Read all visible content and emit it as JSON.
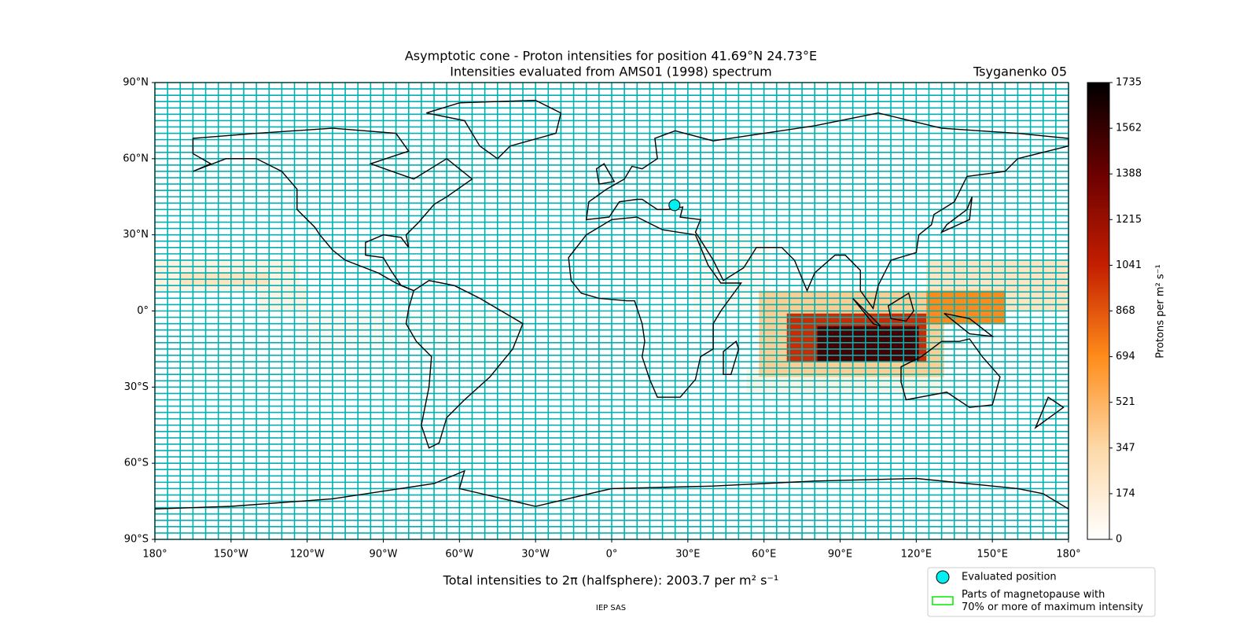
{
  "chart_data": {
    "type": "map",
    "title": "Asymptotic cone - Proton intensities for position 41.69°N 24.73°E",
    "subtitle": "Intensities evaluated from AMS01 (1998) spectrum",
    "model": "Tsyganenko 05",
    "xlabel": "Total intensities to 2π (halfsphere): 2003.7 per m² s⁻¹",
    "footer": "IEP SAS",
    "xlim": [
      -180,
      180
    ],
    "ylim": [
      -90,
      90
    ],
    "xticks": [
      {
        "value": -180,
        "label": "180°"
      },
      {
        "value": -150,
        "label": "150°W"
      },
      {
        "value": -120,
        "label": "120°W"
      },
      {
        "value": -90,
        "label": "90°W"
      },
      {
        "value": -60,
        "label": "60°W"
      },
      {
        "value": -30,
        "label": "30°W"
      },
      {
        "value": 0,
        "label": "0°"
      },
      {
        "value": 30,
        "label": "30°E"
      },
      {
        "value": 60,
        "label": "60°E"
      },
      {
        "value": 90,
        "label": "90°E"
      },
      {
        "value": 120,
        "label": "120°E"
      },
      {
        "value": 150,
        "label": "150°E"
      },
      {
        "value": 180,
        "label": "180°"
      }
    ],
    "yticks": [
      {
        "value": 90,
        "label": "90°N"
      },
      {
        "value": 60,
        "label": "60°N"
      },
      {
        "value": 30,
        "label": "30°N"
      },
      {
        "value": 0,
        "label": "0°"
      },
      {
        "value": -30,
        "label": "30°S"
      },
      {
        "value": -60,
        "label": "60°S"
      },
      {
        "value": -90,
        "label": "90°S"
      }
    ],
    "colorbar": {
      "label": "Protons per m² s⁻¹",
      "clim": [
        0,
        1735
      ],
      "ticks": [
        0,
        {
          "value": 173.5,
          "label": "174"
        },
        347,
        {
          "value": 520.5,
          "label": "521"
        },
        694,
        {
          "value": 867.5,
          "label": "868"
        },
        1041,
        {
          "value": 1214.5,
          "label": "1215"
        },
        1388,
        {
          "value": 1561.5,
          "label": "1562"
        },
        1735
      ],
      "colormap": [
        "#ffffff",
        "#fdd9a8",
        "#ff8c1a",
        "#c41e00",
        "#6b0000",
        "#000000"
      ]
    },
    "cells": [
      {
        "lon": [
          -180,
          -123
        ],
        "lat": [
          8,
          20
        ],
        "value": 120
      },
      {
        "lon": [
          -170,
          -135
        ],
        "lat": [
          10,
          15
        ],
        "value": 260
      },
      {
        "lon": [
          -139,
          -120
        ],
        "lat": [
          0,
          10
        ],
        "value": 110
      },
      {
        "lon": [
          -123,
          -86
        ],
        "lat": [
          -14,
          0
        ],
        "value": 60
      },
      {
        "lon": [
          -86,
          -33
        ],
        "lat": [
          -14,
          0
        ],
        "value": 30
      },
      {
        "lon": [
          32,
          62
        ],
        "lat": [
          0,
          30
        ],
        "value": 60
      },
      {
        "lon": [
          53,
          131
        ],
        "lat": [
          -32,
          -23
        ],
        "value": 100
      },
      {
        "lon": [
          58,
          131
        ],
        "lat": [
          -26,
          8
        ],
        "value": 400
      },
      {
        "lon": [
          69,
          124
        ],
        "lat": [
          -20,
          -1
        ],
        "value": 1000
      },
      {
        "lon": [
          81,
          121
        ],
        "lat": [
          -20,
          -6
        ],
        "value": 1500
      },
      {
        "lon": [
          124,
          180
        ],
        "lat": [
          0,
          20
        ],
        "value": 250
      },
      {
        "lon": [
          124,
          155
        ],
        "lat": [
          -5,
          8
        ],
        "value": 700
      }
    ],
    "marker": {
      "lon": 24.73,
      "lat": 41.69,
      "color": "#00f0f0"
    },
    "legend": [
      "Evaluated position",
      "Parts of magnetopause with 70% or more of maximum intensity"
    ],
    "legend_colors": [
      "#00f0f0",
      "#00ee00"
    ]
  }
}
